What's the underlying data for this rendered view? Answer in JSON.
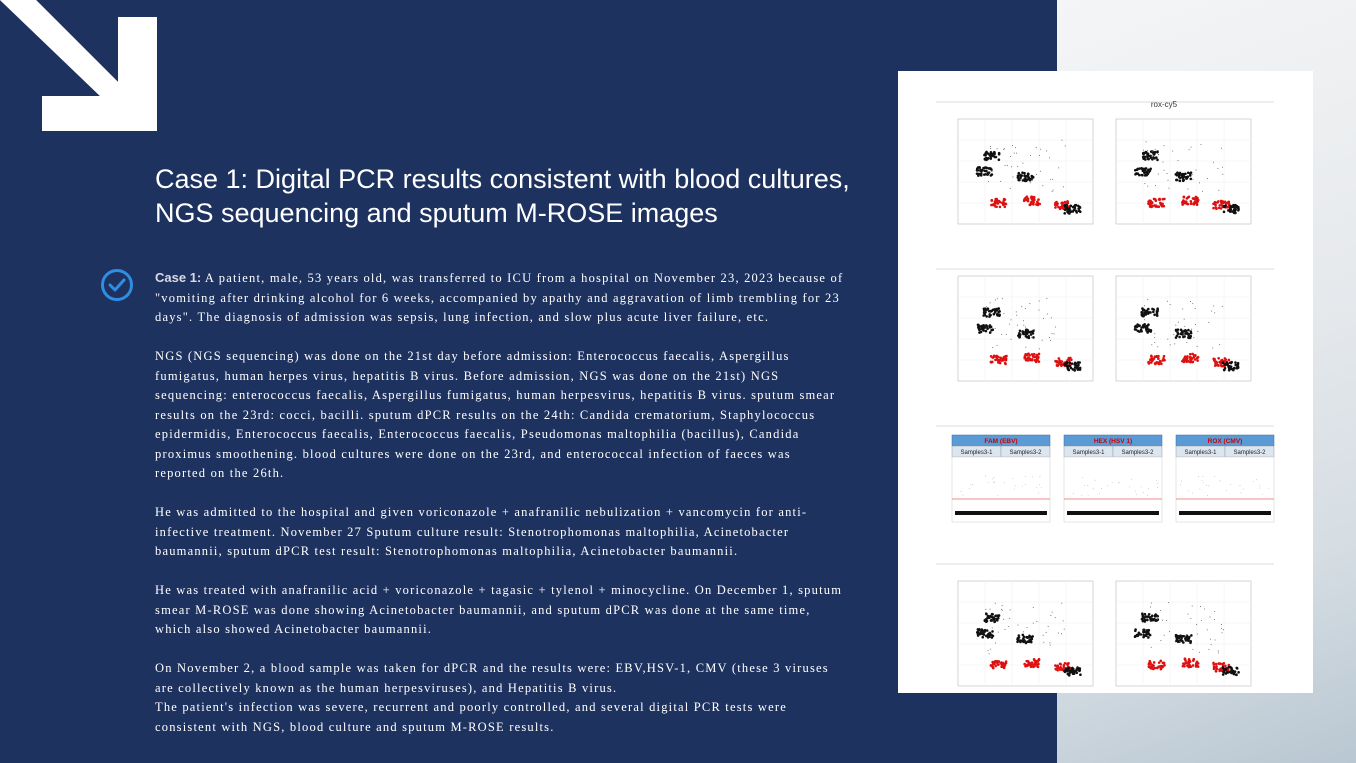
{
  "slide": {
    "title": "Case 1: Digital PCR results consistent with blood cultures, NGS sequencing and sputum M-ROSE images",
    "case_label": "Case 1:",
    "paragraphs": [
      "A patient, male, 53 years old, was transferred to ICU from a hospital on November 23, 2023 because of \"vomiting after drinking alcohol for 6 weeks, accompanied by apathy and aggravation of limb trembling for 23 days\". The diagnosis of admission was sepsis, lung infection, and slow plus acute liver failure, etc.",
      "NGS (NGS sequencing) was done on the 21st day before admission: Enterococcus faecalis, Aspergillus fumigatus, human herpes virus, hepatitis B virus. Before admission, NGS was done on the 21st) NGS sequencing: enterococcus faecalis, Aspergillus fumigatus, human herpesvirus, hepatitis B virus. sputum smear results on the 23rd: cocci,  bacilli. sputum dPCR results on the 24th: Candida crematorium, Staphylococcus epidermidis, Enterococcus faecalis, Enterococcus faecalis, Pseudomonas maltophilia (bacillus), Candida proximus smoothening. blood cultures were done on the 23rd, and enterococcal infection of faeces was reported on the 26th.",
      "He was admitted to the hospital and given voriconazole + anafranilic nebulization + vancomycin for anti-infective treatment. November 27 Sputum culture result: Stenotrophomonas maltophilia, Acinetobacter baumannii, sputum dPCR test result: Stenotrophomonas maltophilia, Acinetobacter baumannii.",
      "He was treated with anafranilic acid + voriconazole + tagasic + tylenol + minocycline. On December 1, sputum smear M-ROSE was done showing Acinetobacter baumannii, and sputum dPCR was done at the same time, which also showed Acinetobacter baumannii.",
      "On November 2, a blood sample was taken for dPCR and the results were: EBV,HSV-1, CMV (these 3 viruses are collectively known as the human herpesviruses), and Hepatitis B virus.",
      "The patient's infection was severe, recurrent and poorly controlled, and several digital PCR tests were consistent with NGS, blood culture and sputum M-ROSE results."
    ],
    "figure": {
      "title": "rox-cy5",
      "channels": [
        {
          "name": "FAM (EBV)",
          "samples": [
            "Samples3-1",
            "Samples3-2"
          ]
        },
        {
          "name": "HEX (HSV 1)",
          "samples": [
            "Samples3-1",
            "Samples3-2"
          ]
        },
        {
          "name": "ROX (CMV)",
          "samples": [
            "Samples3-1",
            "Samples3-2"
          ]
        }
      ]
    }
  }
}
